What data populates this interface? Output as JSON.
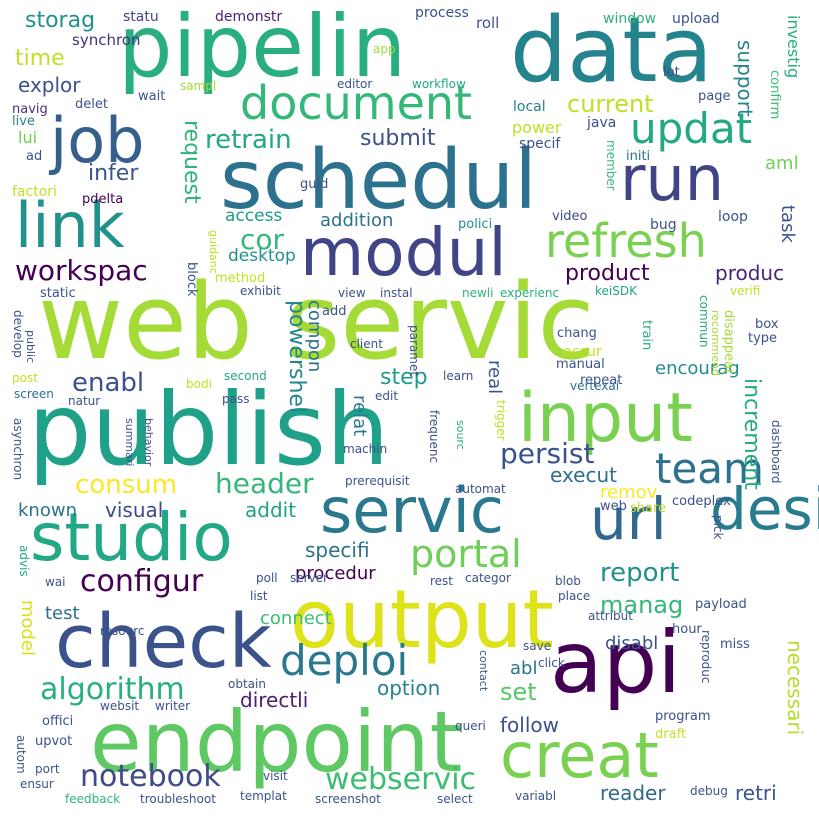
{
  "words": [
    {
      "text": "web servic",
      "color": "#a5db36"
    },
    {
      "text": "publish",
      "color": "#1fa088"
    },
    {
      "text": "schedul",
      "color": "#2c718e"
    },
    {
      "text": "data",
      "color": "#25838e"
    },
    {
      "text": "pipelin",
      "color": "#29af7f"
    },
    {
      "text": "endpoint",
      "color": "#5ec962"
    },
    {
      "text": "output",
      "color": "#dde318"
    },
    {
      "text": "api",
      "color": "#440154"
    },
    {
      "text": "input",
      "color": "#7ad151"
    },
    {
      "text": "studio",
      "color": "#22a884"
    },
    {
      "text": "check",
      "color": "#3b528b"
    },
    {
      "text": "modul",
      "color": "#414487"
    },
    {
      "text": "link",
      "color": "#21918c"
    },
    {
      "text": "servic",
      "color": "#2a788e"
    },
    {
      "text": "job",
      "color": "#355f8d"
    },
    {
      "text": "run",
      "color": "#414487"
    },
    {
      "text": "design",
      "color": "#287c8e"
    },
    {
      "text": "creat",
      "color": "#7ad151"
    },
    {
      "text": "url",
      "color": "#31688e"
    },
    {
      "text": "document",
      "color": "#35b779"
    },
    {
      "text": "refresh",
      "color": "#7ad151"
    },
    {
      "text": "updat",
      "color": "#22a884"
    },
    {
      "text": "deploi",
      "color": "#2a788e"
    },
    {
      "text": "portal",
      "color": "#6ece58"
    },
    {
      "text": "team",
      "color": "#2c728e"
    },
    {
      "text": "notebook",
      "color": "#3e4a89"
    },
    {
      "text": "webservic",
      "color": "#3dbc74"
    },
    {
      "text": "algorithm",
      "color": "#2ab07f"
    },
    {
      "text": "configur",
      "color": "#440154"
    },
    {
      "text": "workspac",
      "color": "#440154"
    },
    {
      "text": "enabl",
      "color": "#3b528b"
    },
    {
      "text": "header",
      "color": "#35b779"
    },
    {
      "text": "consum",
      "color": "#fde725"
    },
    {
      "text": "persist",
      "color": "#3b528b"
    },
    {
      "text": "report",
      "color": "#21918c"
    },
    {
      "text": "manag",
      "color": "#35b779"
    },
    {
      "text": "retrain",
      "color": "#22a884"
    },
    {
      "text": "submit",
      "color": "#3b528b"
    },
    {
      "text": "request",
      "color": "#2fb47c"
    },
    {
      "text": "current",
      "color": "#c2df23"
    },
    {
      "text": "support",
      "color": "#25848e"
    },
    {
      "text": "investig",
      "color": "#2ab07f"
    },
    {
      "text": "storag",
      "color": "#21918c"
    },
    {
      "text": "time",
      "color": "#c2df23"
    },
    {
      "text": "explor",
      "color": "#3b528b"
    },
    {
      "text": "infer",
      "color": "#39568c"
    },
    {
      "text": "cor",
      "color": "#37b878"
    },
    {
      "text": "access",
      "color": "#1e9b8a"
    },
    {
      "text": "addition",
      "color": "#2c728e"
    },
    {
      "text": "desktop",
      "color": "#20928c"
    },
    {
      "text": "product",
      "color": "#440154"
    },
    {
      "text": "produc",
      "color": "#482475"
    },
    {
      "text": "task",
      "color": "#3b528b"
    },
    {
      "text": "aml",
      "color": "#73d056"
    },
    {
      "text": "powershel",
      "color": "#25848e"
    },
    {
      "text": "compon",
      "color": "#2c728e"
    },
    {
      "text": "step",
      "color": "#1e9b8a"
    },
    {
      "text": "relat",
      "color": "#2a788e"
    },
    {
      "text": "real",
      "color": "#39568c"
    },
    {
      "text": "encourag",
      "color": "#228c8d"
    },
    {
      "text": "increment",
      "color": "#25ab82"
    },
    {
      "text": "execut",
      "color": "#2e6f8e"
    },
    {
      "text": "remov",
      "color": "#fde725"
    },
    {
      "text": "necessari",
      "color": "#b5de2b"
    },
    {
      "text": "visual",
      "color": "#3e4a89"
    },
    {
      "text": "addit",
      "color": "#20a386"
    },
    {
      "text": "known",
      "color": "#2c728e"
    },
    {
      "text": "specifi",
      "color": "#2c718e"
    },
    {
      "text": "procedur",
      "color": "#440154"
    },
    {
      "text": "model",
      "color": "#d8e219"
    },
    {
      "text": "test",
      "color": "#2c718e"
    },
    {
      "text": "connect",
      "color": "#3dbc74"
    },
    {
      "text": "disabl",
      "color": "#3b528b"
    },
    {
      "text": "abl",
      "color": "#2c728e"
    },
    {
      "text": "set",
      "color": "#58c765"
    },
    {
      "text": "option",
      "color": "#25838e"
    },
    {
      "text": "directli",
      "color": "#482173"
    },
    {
      "text": "follow",
      "color": "#3b528b"
    },
    {
      "text": "reader",
      "color": "#31688e"
    },
    {
      "text": "retri",
      "color": "#3b528b"
    },
    {
      "text": "synchron",
      "color": "#46327e"
    },
    {
      "text": "statu",
      "color": "#414487"
    },
    {
      "text": "demonstr",
      "color": "#482475"
    },
    {
      "text": "process",
      "color": "#3b528b"
    },
    {
      "text": "roll",
      "color": "#39568c"
    },
    {
      "text": "window",
      "color": "#2ab07f"
    },
    {
      "text": "upload",
      "color": "#39568c"
    },
    {
      "text": "confirm",
      "color": "#3dbc74"
    },
    {
      "text": "lot",
      "color": "#404688"
    },
    {
      "text": "page",
      "color": "#3b528b"
    },
    {
      "text": "app",
      "color": "#a0da39"
    },
    {
      "text": "editor",
      "color": "#3b528b"
    },
    {
      "text": "workflow",
      "color": "#22a884"
    },
    {
      "text": "sampl",
      "color": "#a5db36"
    },
    {
      "text": "wait",
      "color": "#3b528b"
    },
    {
      "text": "navig",
      "color": "#46327e"
    },
    {
      "text": "delet",
      "color": "#3b528b"
    },
    {
      "text": "live",
      "color": "#26828e"
    },
    {
      "text": "lui",
      "color": "#6ece58"
    },
    {
      "text": "ad",
      "color": "#3b528b"
    },
    {
      "text": "local",
      "color": "#25838e"
    },
    {
      "text": "power",
      "color": "#c2df23"
    },
    {
      "text": "java",
      "color": "#3b528b"
    },
    {
      "text": "specif",
      "color": "#3b528b"
    },
    {
      "text": "initi",
      "color": "#2c728e"
    },
    {
      "text": "loop",
      "color": "#3b528b"
    },
    {
      "text": "member",
      "color": "#37b878"
    },
    {
      "text": "factori",
      "color": "#c2df23"
    },
    {
      "text": "guid",
      "color": "#3b528b"
    },
    {
      "text": "pdelta",
      "color": "#440154"
    },
    {
      "text": "video",
      "color": "#3e4a89"
    },
    {
      "text": "bug",
      "color": "#3b528b"
    },
    {
      "text": "guidanc",
      "color": "#c2df23"
    },
    {
      "text": "polici",
      "color": "#20928c"
    },
    {
      "text": "static",
      "color": "#3b528b"
    },
    {
      "text": "exhibit",
      "color": "#3b528b"
    },
    {
      "text": "method",
      "color": "#c2df23"
    },
    {
      "text": "block",
      "color": "#3b528b"
    },
    {
      "text": "newli",
      "color": "#2fb47c"
    },
    {
      "text": "experienc",
      "color": "#29af7f"
    },
    {
      "text": "view",
      "color": "#3b528b"
    },
    {
      "text": "instal",
      "color": "#3b528b"
    },
    {
      "text": "keiSDK",
      "color": "#20a386"
    },
    {
      "text": "verifi",
      "color": "#c2df23"
    },
    {
      "text": "commun",
      "color": "#22a884"
    },
    {
      "text": "develop",
      "color": "#3b528b"
    },
    {
      "text": "public",
      "color": "#3b528b"
    },
    {
      "text": "add",
      "color": "#3b528b"
    },
    {
      "text": "client",
      "color": "#3b528b"
    },
    {
      "text": "paramet",
      "color": "#3b528b"
    },
    {
      "text": "chang",
      "color": "#3b528b"
    },
    {
      "text": "occur",
      "color": "#c2df23"
    },
    {
      "text": "manual",
      "color": "#3b528b"
    },
    {
      "text": "train",
      "color": "#29af7f"
    },
    {
      "text": "recommend",
      "color": "#a5db36"
    },
    {
      "text": "disappear",
      "color": "#a5db36"
    },
    {
      "text": "box",
      "color": "#3b528b"
    },
    {
      "text": "type",
      "color": "#3b528b"
    },
    {
      "text": "post",
      "color": "#c2df23"
    },
    {
      "text": "screen",
      "color": "#2c728e"
    },
    {
      "text": "natur",
      "color": "#3b528b"
    },
    {
      "text": "bodi",
      "color": "#c2df23"
    },
    {
      "text": "second",
      "color": "#22a884"
    },
    {
      "text": "pass",
      "color": "#3b528b"
    },
    {
      "text": "edit",
      "color": "#3b528b"
    },
    {
      "text": "learn",
      "color": "#3b528b"
    },
    {
      "text": "repeat",
      "color": "#3b528b"
    },
    {
      "text": "vertexai",
      "color": "#2c728e"
    },
    {
      "text": "asynchron",
      "color": "#3b528b"
    },
    {
      "text": "summari",
      "color": "#3b528b"
    },
    {
      "text": "behavior",
      "color": "#3b528b"
    },
    {
      "text": "machin",
      "color": "#3b528b"
    },
    {
      "text": "frequenc",
      "color": "#3b528b"
    },
    {
      "text": "trigger",
      "color": "#c2df23"
    },
    {
      "text": "sourc",
      "color": "#29af7f"
    },
    {
      "text": "dashboard",
      "color": "#3b528b"
    },
    {
      "text": "prerequisit",
      "color": "#3b528b"
    },
    {
      "text": "automat",
      "color": "#3b528b"
    },
    {
      "text": "web",
      "color": "#3b528b"
    },
    {
      "text": "share",
      "color": "#c2df23"
    },
    {
      "text": "codeplex",
      "color": "#3b528b"
    },
    {
      "text": "pick",
      "color": "#3b528b"
    },
    {
      "text": "advis",
      "color": "#22a884"
    },
    {
      "text": "wai",
      "color": "#3b528b"
    },
    {
      "text": "poll",
      "color": "#3b528b"
    },
    {
      "text": "server",
      "color": "#3b528b"
    },
    {
      "text": "blob",
      "color": "#3b528b"
    },
    {
      "text": "place",
      "color": "#3b528b"
    },
    {
      "text": "rest",
      "color": "#3b528b"
    },
    {
      "text": "categor",
      "color": "#3b528b"
    },
    {
      "text": "list",
      "color": "#3b528b"
    },
    {
      "text": "resourc",
      "color": "#3b528b"
    },
    {
      "text": "attribut",
      "color": "#3b528b"
    },
    {
      "text": "payload",
      "color": "#3b528b"
    },
    {
      "text": "hour",
      "color": "#3b528b"
    },
    {
      "text": "miss",
      "color": "#3b528b"
    },
    {
      "text": "reproduc",
      "color": "#3b528b"
    },
    {
      "text": "save",
      "color": "#3b528b"
    },
    {
      "text": "click",
      "color": "#3b528b"
    },
    {
      "text": "contact",
      "color": "#3b528b"
    },
    {
      "text": "obtain",
      "color": "#3b528b"
    },
    {
      "text": "offici",
      "color": "#3b528b"
    },
    {
      "text": "websit",
      "color": "#3b528b"
    },
    {
      "text": "writer",
      "color": "#3b528b"
    },
    {
      "text": "queri",
      "color": "#3b528b"
    },
    {
      "text": "program",
      "color": "#3b528b"
    },
    {
      "text": "upvot",
      "color": "#3b528b"
    },
    {
      "text": "draft",
      "color": "#c2df23"
    },
    {
      "text": "autom",
      "color": "#3b528b"
    },
    {
      "text": "port",
      "color": "#3b528b"
    },
    {
      "text": "visit",
      "color": "#3b528b"
    },
    {
      "text": "ensur",
      "color": "#3b528b"
    },
    {
      "text": "feedback",
      "color": "#2fb47c"
    },
    {
      "text": "troubleshoot",
      "color": "#3b528b"
    },
    {
      "text": "templat",
      "color": "#3b528b"
    },
    {
      "text": "screenshot",
      "color": "#3b528b"
    },
    {
      "text": "select",
      "color": "#3b528b"
    },
    {
      "text": "variabl",
      "color": "#3b528b"
    },
    {
      "text": "debug",
      "color": "#3b528b"
    }
  ]
}
